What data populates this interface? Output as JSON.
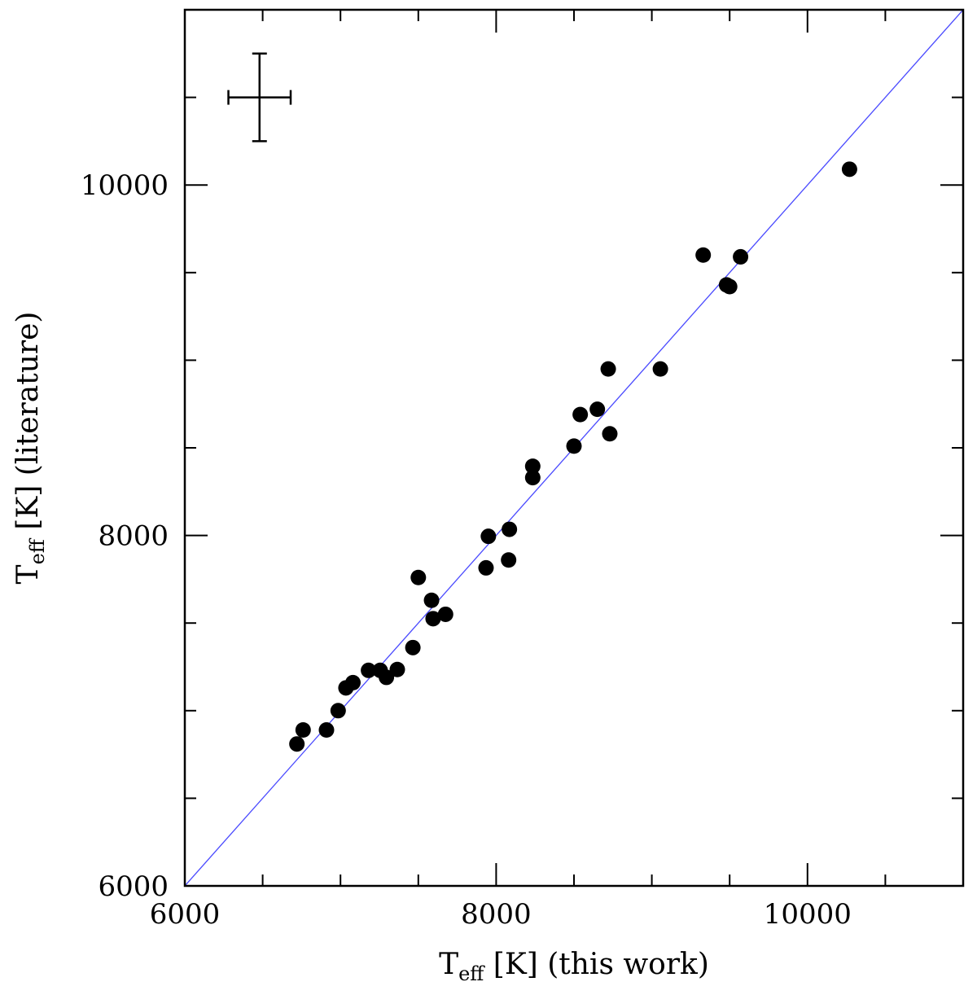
{
  "chart_data": {
    "type": "scatter",
    "xlabel": {
      "main": "T",
      "sub": "eff",
      "rest": " [K] (this work)"
    },
    "ylabel": {
      "main": "T",
      "sub": "eff",
      "rest": " [K] (literature)"
    },
    "xlim": [
      6000,
      11000
    ],
    "ylim": [
      6000,
      11000
    ],
    "x_ticks_major": [
      6000,
      8000,
      10000
    ],
    "x_tick_labels": [
      "6000",
      "8000",
      "10000"
    ],
    "y_ticks_major": [
      6000,
      8000,
      10000
    ],
    "y_tick_labels": [
      "6000",
      "8000",
      "10000"
    ],
    "minor_tick_step": 500,
    "grid": false,
    "reference_line": {
      "type": "one-to-one",
      "color": "#4a4aff"
    },
    "marker_color": "#000000",
    "error_bar": {
      "x": 6480,
      "y": 10500,
      "x_err": 200,
      "y_err": 250
    },
    "points": [
      {
        "x": 6720,
        "y": 6810
      },
      {
        "x": 6760,
        "y": 6890
      },
      {
        "x": 6910,
        "y": 6890
      },
      {
        "x": 6985,
        "y": 7000
      },
      {
        "x": 7035,
        "y": 7130
      },
      {
        "x": 7080,
        "y": 7160
      },
      {
        "x": 7180,
        "y": 7230
      },
      {
        "x": 7255,
        "y": 7230
      },
      {
        "x": 7295,
        "y": 7190
      },
      {
        "x": 7365,
        "y": 7235
      },
      {
        "x": 7465,
        "y": 7360
      },
      {
        "x": 7500,
        "y": 7760
      },
      {
        "x": 7585,
        "y": 7630
      },
      {
        "x": 7595,
        "y": 7525
      },
      {
        "x": 7675,
        "y": 7550
      },
      {
        "x": 7935,
        "y": 7815
      },
      {
        "x": 7950,
        "y": 7995
      },
      {
        "x": 8080,
        "y": 7860
      },
      {
        "x": 8085,
        "y": 8035
      },
      {
        "x": 8235,
        "y": 8395
      },
      {
        "x": 8235,
        "y": 8330
      },
      {
        "x": 8500,
        "y": 8510
      },
      {
        "x": 8540,
        "y": 8690
      },
      {
        "x": 8650,
        "y": 8720
      },
      {
        "x": 8720,
        "y": 8950
      },
      {
        "x": 8730,
        "y": 8580
      },
      {
        "x": 9055,
        "y": 8950
      },
      {
        "x": 9330,
        "y": 9600
      },
      {
        "x": 9480,
        "y": 9430
      },
      {
        "x": 9500,
        "y": 9420
      },
      {
        "x": 9570,
        "y": 9590
      },
      {
        "x": 10270,
        "y": 10090
      }
    ]
  }
}
